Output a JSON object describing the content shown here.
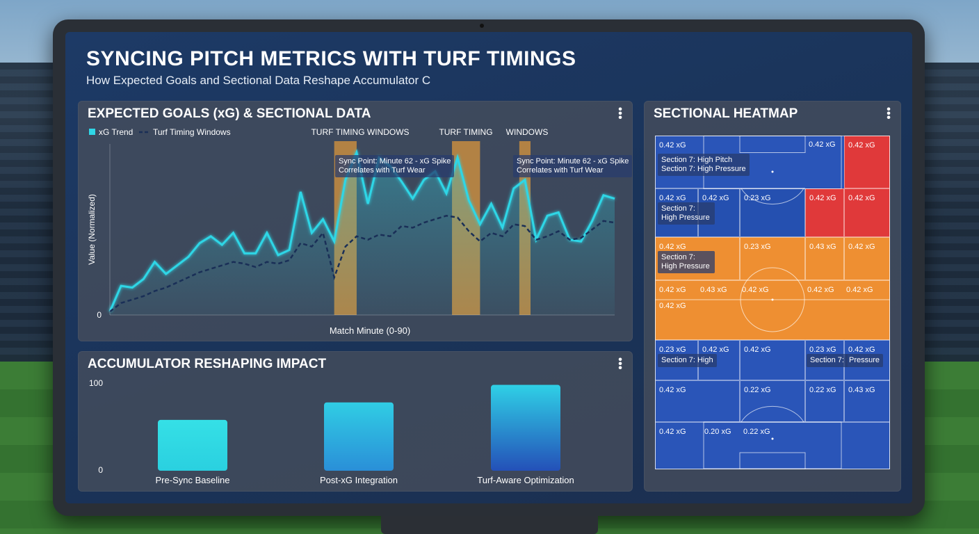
{
  "header": {
    "title": "SYNCING PITCH METRICS WITH TURF TIMINGS",
    "subtitle": "How Expected Goals and Sectional Data Reshape Accumulator C"
  },
  "xg_panel": {
    "title": "EXPECTED GOALS (xG) & SECTIONAL DATA",
    "legend": {
      "trend": "xG Trend",
      "windows": "Turf Timing Windows"
    },
    "window_labels": [
      "TURF TIMING WINDOWS",
      "TURF TIMING",
      "WINDOWS"
    ],
    "callouts": [
      {
        "line1": "Sync Point: Minute 62 - xG Spike",
        "line2": "Correlates with Turf Wear"
      },
      {
        "line1": "Sync Point: Minute 62 - xG Spike",
        "line2": "Correlates with Turf Wear"
      }
    ],
    "ylabel": "Value (Normalized)",
    "xlabel": "Match Minute (0-90)",
    "y_tick": "0"
  },
  "acc_panel": {
    "title": "ACCUMULATOR RESHAPING IMPACT",
    "y_ticks": [
      "100",
      "0"
    ]
  },
  "heat_panel": {
    "title": "SECTIONAL HEATMAP",
    "cells": {
      "r0c0": "0.42 xG",
      "r0c4": "0.42 xG",
      "r0c5": "0.42 xG",
      "r1c0": "0.42 xG",
      "r1c1": "0.42 xG",
      "r1c2": "0.23 xG",
      "r1c4": "0.42 xG",
      "r1c5": "0.42 xG",
      "r2c0": "0.42 xG",
      "r2c2": "0.23 xG",
      "r2c4": "0.43 xG",
      "r2c5": "0.42 xG",
      "r3a": "0.42 xG",
      "r3b": "0.43 xG",
      "r3c": "0.42 xG",
      "r3d": "0.42 xG",
      "r3e": "0.42 xG",
      "r3f": "0.42 xG",
      "r4c0": "0.23 xG",
      "r4c1": "0.42 xG",
      "r4c2": "0.42 xG",
      "r4c4": "0.23 xG",
      "r4c5": "0.42 xG",
      "r5c0": "0.42 xG",
      "r5c2": "0.22 xG",
      "r5c4": "0.22 xG",
      "r5c5": "0.43 xG",
      "r6c0": "0.42 xG",
      "r6c1": "0.20 xG",
      "r6c2": "0.22 xG"
    },
    "labels": {
      "l1a": "Section 7: High Pitch",
      "l1b": "Section 7: High Pressure",
      "l2": "Section 7: High Pressure",
      "l3": "Section 7: High Pressure",
      "l4a": "Section 7: High",
      "l4b": "Section 7:",
      "l4c": "Pressure"
    }
  },
  "chart_data": [
    {
      "type": "line",
      "title": "EXPECTED GOALS (xG) & SECTIONAL DATA",
      "xlabel": "Match Minute (0-90)",
      "ylabel": "Value (Normalized)",
      "xlim": [
        0,
        90
      ],
      "ylim": [
        0,
        1
      ],
      "legend": "top-left",
      "series": [
        {
          "name": "xG Trend",
          "color": "#2fd6e6",
          "x": [
            0,
            2,
            4,
            6,
            8,
            10,
            12,
            14,
            16,
            18,
            20,
            22,
            24,
            26,
            28,
            30,
            32,
            34,
            36,
            38,
            40,
            42,
            44,
            46,
            48,
            50,
            52,
            54,
            56,
            58,
            60,
            62,
            64,
            66,
            68,
            70,
            72,
            74,
            76,
            78,
            80,
            82,
            84,
            86,
            88,
            90
          ],
          "y": [
            0.02,
            0.17,
            0.16,
            0.21,
            0.31,
            0.24,
            0.29,
            0.34,
            0.42,
            0.46,
            0.41,
            0.48,
            0.36,
            0.36,
            0.48,
            0.35,
            0.38,
            0.72,
            0.48,
            0.56,
            0.43,
            0.79,
            0.95,
            0.65,
            0.92,
            0.87,
            0.78,
            0.68,
            0.79,
            0.84,
            0.71,
            0.92,
            0.67,
            0.53,
            0.65,
            0.51,
            0.74,
            0.79,
            0.44,
            0.58,
            0.6,
            0.44,
            0.43,
            0.55,
            0.7,
            0.68
          ]
        },
        {
          "name": "Turf Timing Windows",
          "color": "#1a2f57",
          "x": [
            0,
            2,
            4,
            6,
            8,
            10,
            12,
            14,
            16,
            18,
            20,
            22,
            24,
            26,
            28,
            30,
            32,
            34,
            36,
            38,
            40,
            42,
            44,
            46,
            48,
            50,
            52,
            54,
            56,
            58,
            60,
            62,
            64,
            66,
            68,
            70,
            72,
            74,
            76,
            78,
            80,
            82,
            84,
            86,
            88,
            90
          ],
          "y": [
            0.02,
            0.07,
            0.09,
            0.11,
            0.14,
            0.16,
            0.19,
            0.22,
            0.25,
            0.27,
            0.29,
            0.31,
            0.3,
            0.28,
            0.31,
            0.3,
            0.32,
            0.42,
            0.4,
            0.48,
            0.22,
            0.4,
            0.46,
            0.44,
            0.47,
            0.46,
            0.52,
            0.51,
            0.54,
            0.56,
            0.58,
            0.57,
            0.49,
            0.43,
            0.48,
            0.46,
            0.53,
            0.52,
            0.44,
            0.46,
            0.49,
            0.44,
            0.45,
            0.5,
            0.55,
            0.54
          ]
        }
      ],
      "windows": [
        [
          40,
          44
        ],
        [
          61,
          66
        ],
        [
          73,
          75
        ]
      ]
    },
    {
      "type": "bar",
      "title": "ACCUMULATOR RESHAPING IMPACT",
      "categories": [
        "Pre-Sync Baseline",
        "Post-xG Integration",
        "Turf-Aware Optimization"
      ],
      "values": [
        58,
        78,
        98
      ],
      "ylim": [
        0,
        100
      ]
    }
  ]
}
